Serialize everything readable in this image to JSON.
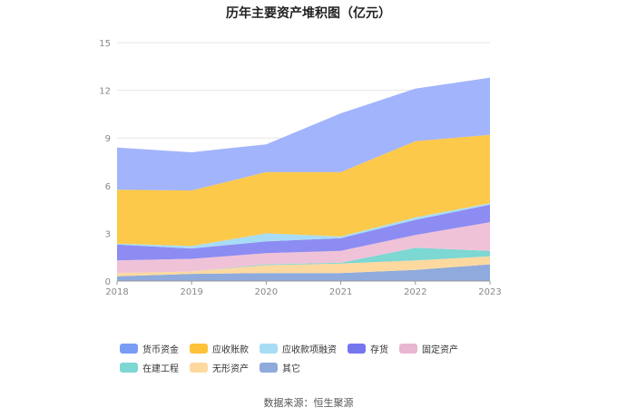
{
  "chart_data": {
    "type": "area",
    "stacked": true,
    "title": "历年主要资产堆积图（亿元）",
    "categories": [
      "2018",
      "2019",
      "2020",
      "2021",
      "2022",
      "2023"
    ],
    "ylim": [
      0,
      15
    ],
    "yticks": [
      0,
      3,
      6,
      9,
      12,
      15
    ],
    "grid": true,
    "legend_position": "bottom",
    "series": [
      {
        "name": "其它",
        "color": "#8faadc",
        "values": [
          0.3,
          0.45,
          0.5,
          0.5,
          0.7,
          1.05
        ]
      },
      {
        "name": "无形资产",
        "color": "#fdd9a0",
        "values": [
          0.2,
          0.15,
          0.5,
          0.6,
          0.6,
          0.5
        ]
      },
      {
        "name": "在建工程",
        "color": "#7dd7d3",
        "values": [
          0.0,
          0.0,
          0.05,
          0.05,
          0.8,
          0.35
        ]
      },
      {
        "name": "固定资产",
        "color": "#f0c2d8",
        "values": [
          0.8,
          0.8,
          0.7,
          0.75,
          0.8,
          1.8
        ]
      },
      {
        "name": "存货",
        "color": "#8c8cf2",
        "values": [
          1.0,
          0.65,
          0.75,
          0.8,
          0.95,
          1.1
        ]
      },
      {
        "name": "应收款项融资",
        "color": "#a8dcf5",
        "values": [
          0.05,
          0.15,
          0.5,
          0.1,
          0.15,
          0.1
        ]
      },
      {
        "name": "应收账款",
        "color": "#fdc94a",
        "values": [
          3.4,
          3.5,
          3.85,
          4.05,
          4.8,
          4.3
        ]
      },
      {
        "name": "货币资金",
        "color": "#a2b4fb",
        "values": [
          2.65,
          2.4,
          1.75,
          3.7,
          3.3,
          3.6
        ]
      }
    ]
  },
  "legend": [
    {
      "label": "货币资金",
      "color": "#7b9cf5"
    },
    {
      "label": "应收账款",
      "color": "#fdc23a"
    },
    {
      "label": "应收款项融资",
      "color": "#a8dcf5"
    },
    {
      "label": "存货",
      "color": "#7575ee"
    },
    {
      "label": "固定资产",
      "color": "#e8b6d1"
    },
    {
      "label": "在建工程",
      "color": "#7dd7d3"
    },
    {
      "label": "无形资产",
      "color": "#fdd9a0"
    },
    {
      "label": "其它",
      "color": "#8faadc"
    }
  ],
  "source": "数据来源：恒生聚源"
}
